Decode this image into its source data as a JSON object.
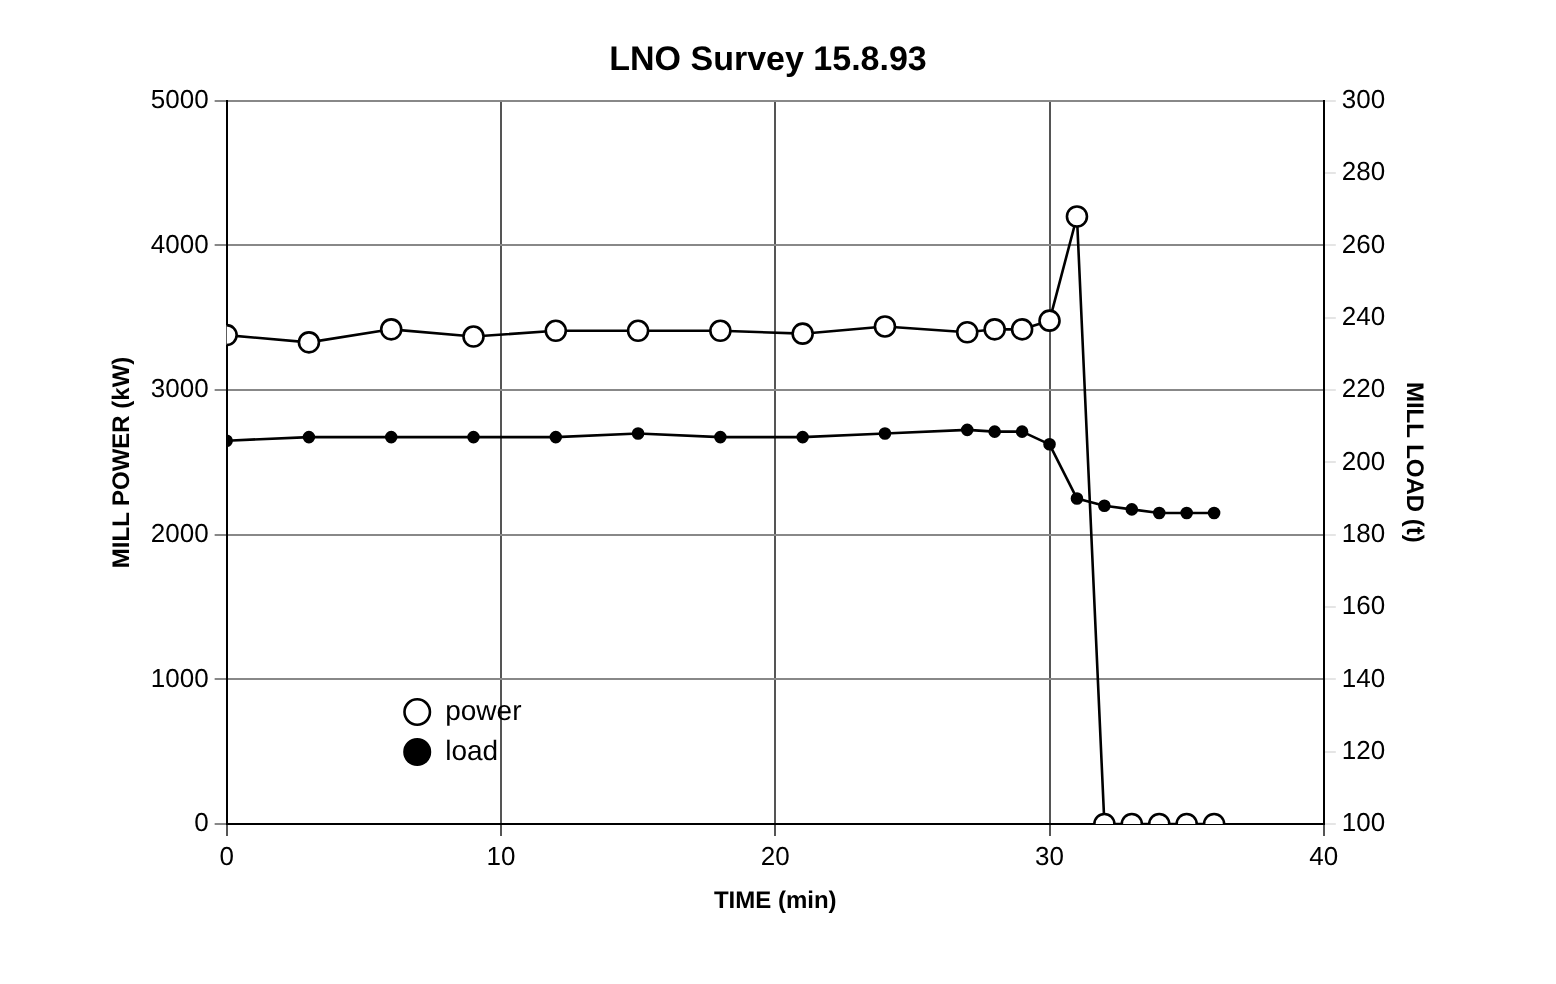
{
  "chart_data": {
    "type": "line",
    "title": "LNO Survey 15.8.93",
    "xlabel": "TIME (min)",
    "ylabel": "MILL POWER (kW)",
    "y2label": "MILL LOAD (t)",
    "x": [
      0,
      3,
      6,
      9,
      12,
      15,
      18,
      21,
      24,
      27,
      28,
      29,
      30,
      31,
      32,
      33,
      34,
      35,
      36
    ],
    "series": [
      {
        "name": "power",
        "color": "#000000",
        "marker": "circle",
        "values": [
          3380,
          3330,
          3420,
          3370,
          3410,
          3410,
          3410,
          3390,
          3440,
          3400,
          3420,
          3420,
          3480,
          4200,
          0,
          0,
          0,
          0,
          0
        ]
      },
      {
        "name": "load",
        "color": "#000000",
        "marker": "circle",
        "axis": "y2",
        "values": [
          206,
          207,
          207,
          207,
          207,
          208,
          207,
          207,
          208,
          209,
          208.5,
          208.5,
          205,
          190,
          188,
          187,
          186,
          186,
          186
        ]
      }
    ],
    "xlim": [
      0,
      40
    ],
    "xticks": [
      0,
      10,
      20,
      30,
      40
    ],
    "ylim": [
      0,
      5000
    ],
    "yticks": [
      0,
      1000,
      2000,
      3000,
      4000,
      5000
    ],
    "y2lim": [
      100,
      300
    ],
    "y2ticks": [
      100,
      120,
      140,
      160,
      180,
      200,
      220,
      240,
      260,
      280,
      300
    ],
    "grid": true,
    "legend": "bottom left"
  }
}
